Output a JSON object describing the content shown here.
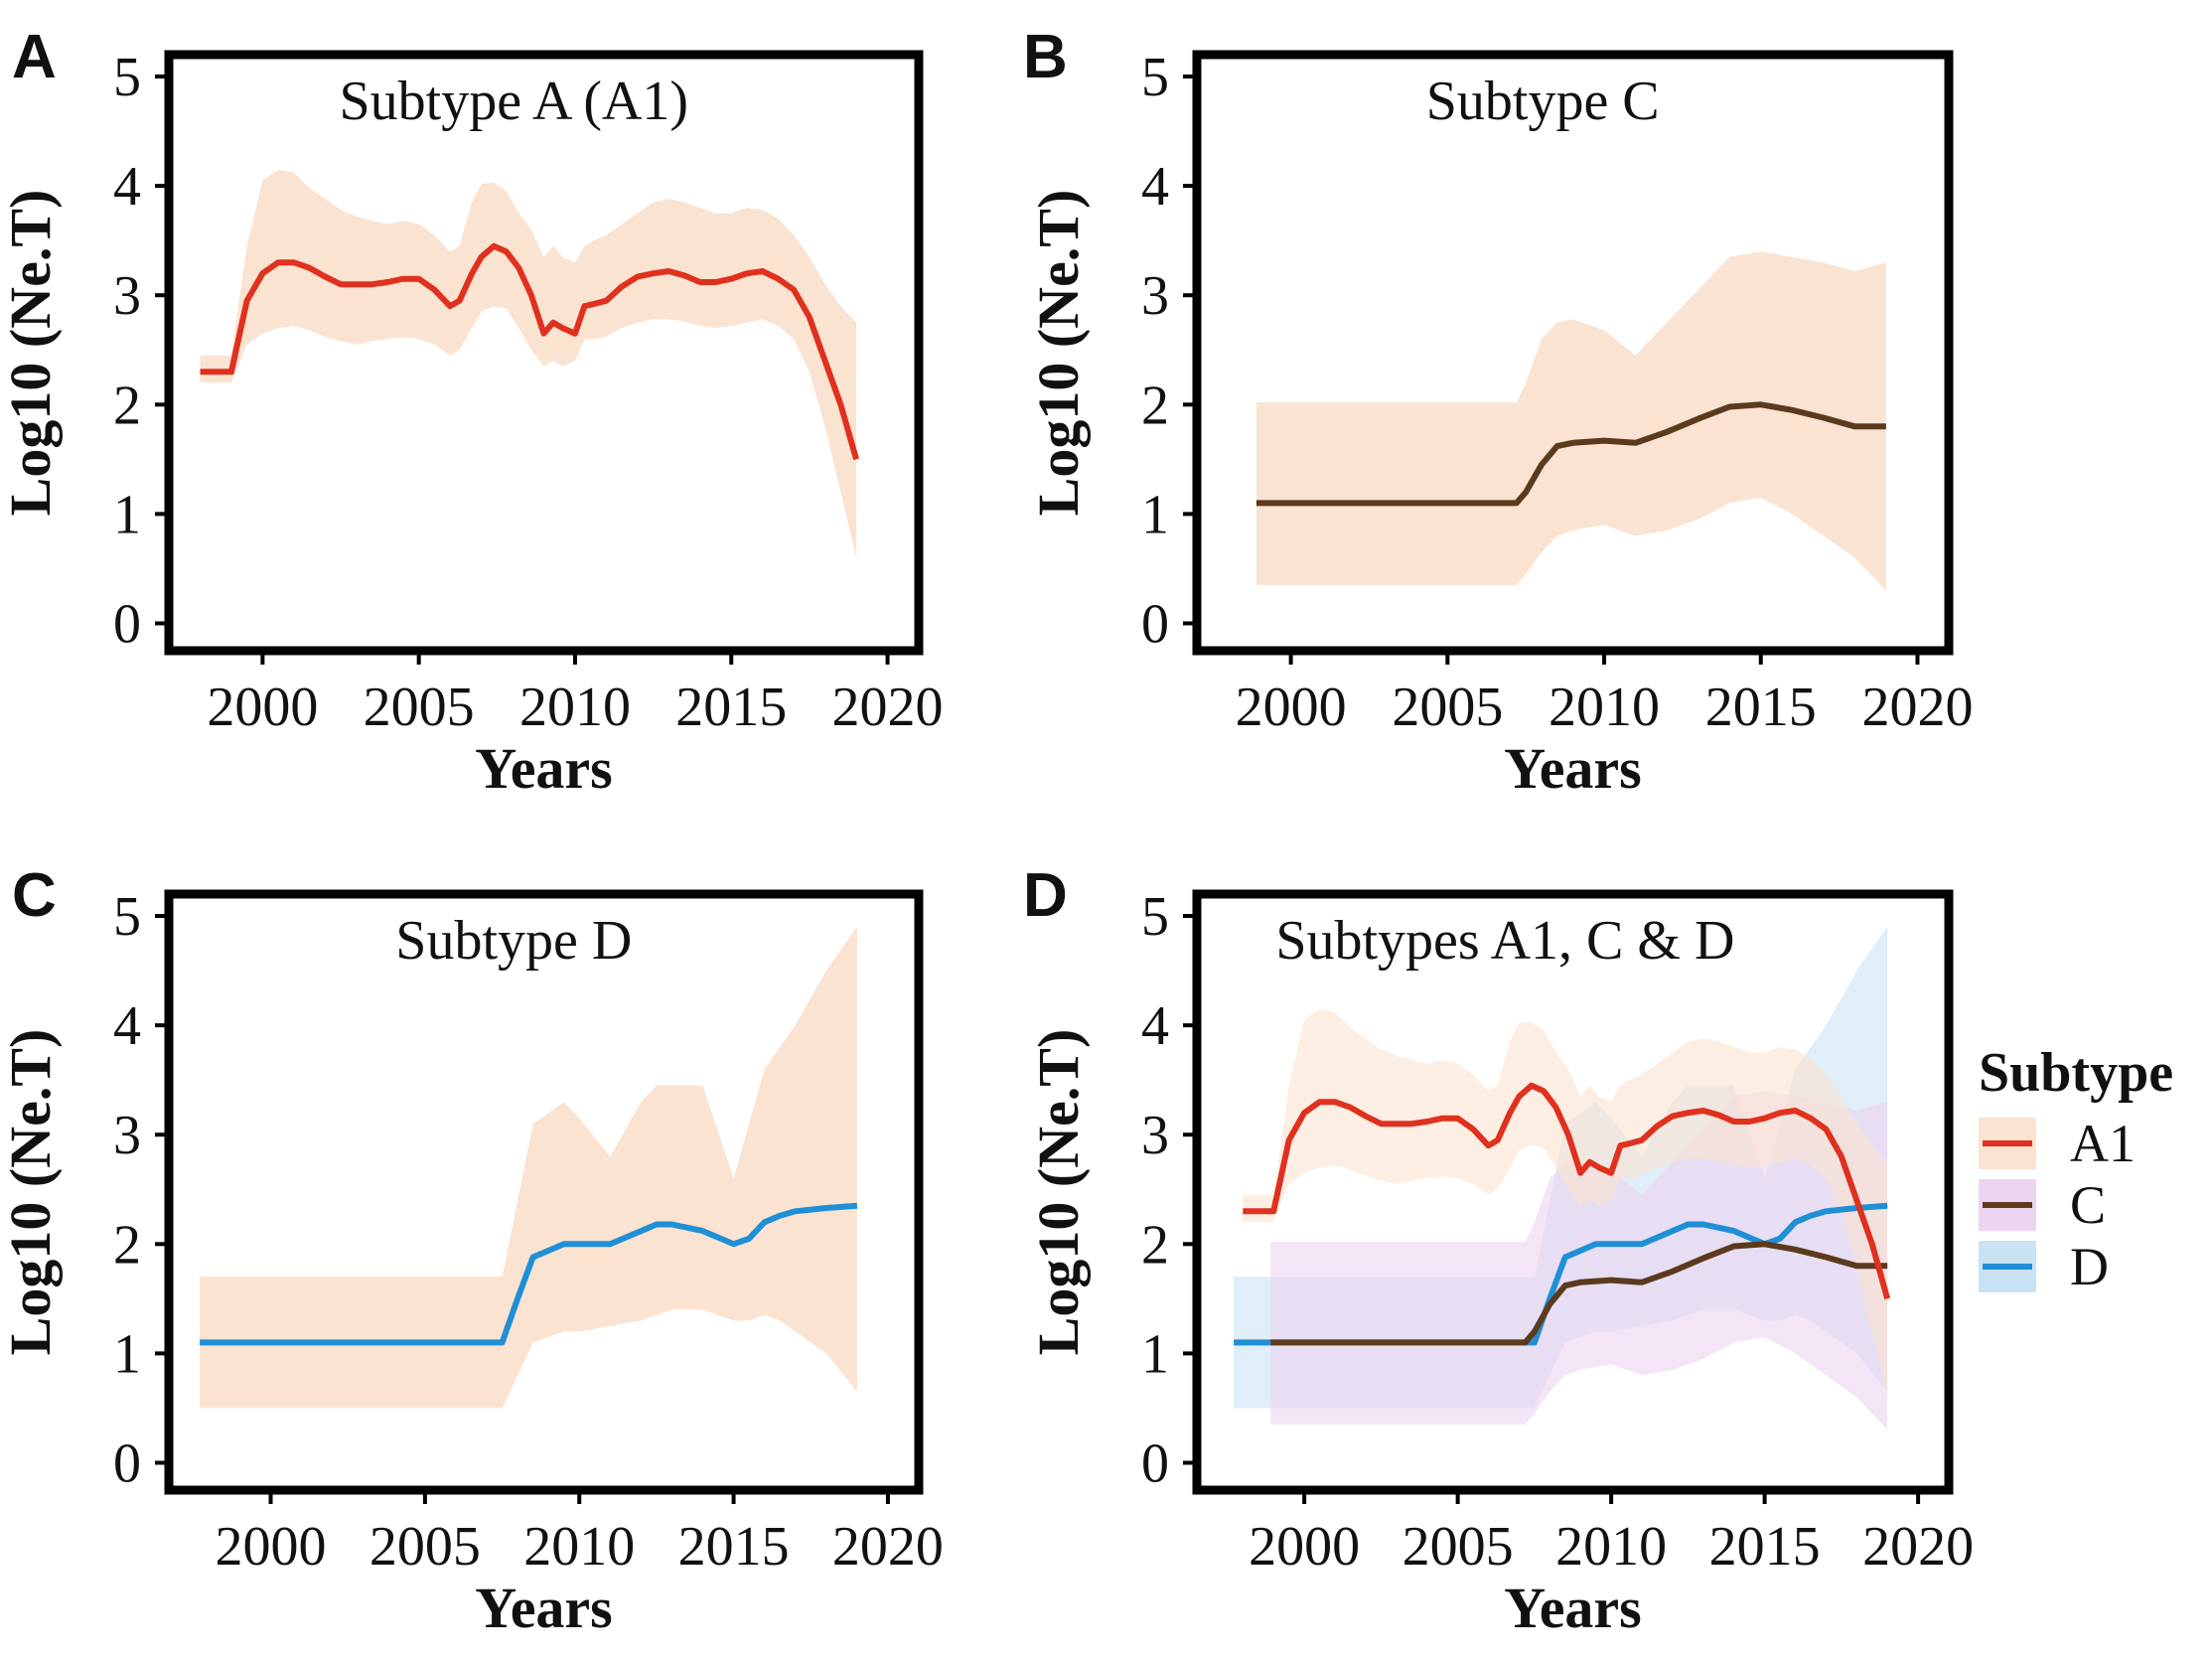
{
  "chart_data": [
    {
      "panel": "A",
      "type": "line",
      "title": "Subtype A (A1)",
      "xlabel": "Years",
      "ylabel": "Log10 (Ne.T)",
      "xlim": [
        1997,
        2021
      ],
      "ylim": [
        -0.25,
        5.2
      ],
      "xticks": [
        2000,
        2005,
        2010,
        2015,
        2020
      ],
      "yticks": [
        0,
        1,
        2,
        3,
        4,
        5
      ],
      "series": [
        {
          "name": "A1",
          "color": "#e0301e",
          "band_color": "#fbe3d1",
          "x": [
            1998.0,
            1999.0,
            1999.5,
            2000.0,
            2000.5,
            2001.0,
            2001.5,
            2002.0,
            2002.5,
            2003.0,
            2003.5,
            2004.0,
            2004.5,
            2005.0,
            2005.5,
            2006.0,
            2006.3,
            2006.7,
            2007.0,
            2007.4,
            2007.8,
            2008.2,
            2008.6,
            2009.0,
            2009.3,
            2009.6,
            2010.0,
            2010.3,
            2010.6,
            2011.0,
            2011.5,
            2012.0,
            2012.5,
            2013.0,
            2013.5,
            2014.0,
            2014.5,
            2015.0,
            2015.5,
            2016.0,
            2016.5,
            2017.0,
            2017.5,
            2018.0,
            2018.5,
            2019.0
          ],
          "y": [
            2.3,
            2.3,
            2.95,
            3.2,
            3.3,
            3.3,
            3.25,
            3.17,
            3.1,
            3.1,
            3.1,
            3.12,
            3.15,
            3.15,
            3.05,
            2.9,
            2.95,
            3.2,
            3.35,
            3.45,
            3.4,
            3.25,
            3.0,
            2.65,
            2.75,
            2.7,
            2.65,
            2.9,
            2.92,
            2.95,
            3.08,
            3.17,
            3.2,
            3.22,
            3.18,
            3.12,
            3.12,
            3.15,
            3.2,
            3.22,
            3.15,
            3.05,
            2.8,
            2.4,
            2.0,
            1.5
          ],
          "lower": [
            2.2,
            2.2,
            2.55,
            2.65,
            2.7,
            2.72,
            2.68,
            2.62,
            2.58,
            2.55,
            2.58,
            2.6,
            2.62,
            2.6,
            2.55,
            2.45,
            2.5,
            2.7,
            2.85,
            2.9,
            2.88,
            2.7,
            2.5,
            2.35,
            2.4,
            2.35,
            2.4,
            2.6,
            2.6,
            2.62,
            2.7,
            2.75,
            2.78,
            2.78,
            2.76,
            2.72,
            2.7,
            2.72,
            2.75,
            2.78,
            2.72,
            2.6,
            2.3,
            1.8,
            1.2,
            0.6
          ],
          "upper": [
            2.45,
            2.45,
            3.45,
            4.05,
            4.15,
            4.12,
            3.98,
            3.88,
            3.78,
            3.72,
            3.68,
            3.65,
            3.68,
            3.65,
            3.55,
            3.4,
            3.45,
            3.85,
            4.02,
            4.03,
            3.95,
            3.75,
            3.6,
            3.35,
            3.45,
            3.35,
            3.3,
            3.45,
            3.5,
            3.55,
            3.65,
            3.75,
            3.85,
            3.88,
            3.85,
            3.8,
            3.75,
            3.75,
            3.8,
            3.78,
            3.7,
            3.55,
            3.35,
            3.1,
            2.9,
            2.75
          ]
        }
      ]
    },
    {
      "panel": "B",
      "type": "line",
      "title": "Subtype C",
      "xlabel": "Years",
      "ylabel": "Log10 (Ne.T)",
      "xlim": [
        1997,
        2021
      ],
      "ylim": [
        -0.25,
        5.2
      ],
      "xticks": [
        2000,
        2005,
        2010,
        2015,
        2020
      ],
      "yticks": [
        0,
        1,
        2,
        3,
        4,
        5
      ],
      "series": [
        {
          "name": "C",
          "color": "#5b3a1e",
          "band_color": "#fbe3d1",
          "x": [
            1998.9,
            2007.2,
            2007.5,
            2008.0,
            2008.5,
            2009.0,
            2010.0,
            2011.0,
            2012.0,
            2013.0,
            2014.0,
            2015.0,
            2016.0,
            2017.0,
            2018.0,
            2019.0
          ],
          "y": [
            1.1,
            1.1,
            1.2,
            1.45,
            1.62,
            1.65,
            1.67,
            1.65,
            1.75,
            1.87,
            1.98,
            2.0,
            1.95,
            1.88,
            1.8,
            1.8
          ],
          "lower": [
            0.35,
            0.35,
            0.45,
            0.65,
            0.8,
            0.85,
            0.9,
            0.8,
            0.85,
            0.95,
            1.1,
            1.15,
            1.0,
            0.8,
            0.6,
            0.3
          ],
          "upper": [
            2.02,
            2.02,
            2.2,
            2.6,
            2.75,
            2.78,
            2.68,
            2.45,
            2.75,
            3.05,
            3.35,
            3.4,
            3.35,
            3.3,
            3.22,
            3.3
          ]
        }
      ]
    },
    {
      "panel": "C",
      "type": "line",
      "title": "Subtype D",
      "xlabel": "Years",
      "ylabel": "Log10 (Ne.T)",
      "xlim": [
        1996.7,
        2021
      ],
      "ylim": [
        -0.25,
        5.2
      ],
      "xticks": [
        2000,
        2005,
        2010,
        2015,
        2020
      ],
      "yticks": [
        0,
        1,
        2,
        3,
        4,
        5
      ],
      "series": [
        {
          "name": "D",
          "color": "#1f8fd6",
          "band_color": "#fbe3d1",
          "x": [
            1997.7,
            2007.5,
            2008.0,
            2008.5,
            2009.5,
            2010.0,
            2011.0,
            2012.0,
            2012.5,
            2013.0,
            2014.0,
            2015.0,
            2015.5,
            2016.0,
            2016.5,
            2017.0,
            2018.0,
            2019.0
          ],
          "y": [
            1.1,
            1.1,
            1.5,
            1.88,
            2.0,
            2.0,
            2.0,
            2.12,
            2.18,
            2.18,
            2.12,
            2.0,
            2.05,
            2.2,
            2.26,
            2.3,
            2.33,
            2.35
          ],
          "lower": [
            0.5,
            0.5,
            0.8,
            1.1,
            1.2,
            1.2,
            1.25,
            1.3,
            1.35,
            1.4,
            1.4,
            1.3,
            1.3,
            1.35,
            1.3,
            1.2,
            1.0,
            0.65
          ],
          "upper": [
            1.7,
            1.7,
            2.4,
            3.1,
            3.3,
            3.15,
            2.8,
            3.3,
            3.45,
            3.45,
            3.45,
            2.6,
            3.1,
            3.6,
            3.8,
            4.0,
            4.5,
            4.9
          ]
        }
      ]
    },
    {
      "panel": "D",
      "type": "line",
      "title": "Subtypes A1, C & D",
      "xlabel": "Years",
      "ylabel": "Log10 (Ne.T)",
      "xlim": [
        1996.5,
        2021
      ],
      "ylim": [
        -0.25,
        5.2
      ],
      "xticks": [
        2000,
        2005,
        2010,
        2015,
        2020
      ],
      "yticks": [
        0,
        1,
        2,
        3,
        4,
        5
      ],
      "legend": {
        "title": "Subtype",
        "position": "right",
        "entries": [
          "A1",
          "C",
          "D"
        ]
      },
      "series": [
        {
          "name": "D",
          "color": "#1f8fd6",
          "band_color": "#c9e3f4",
          "x": [
            1997.7,
            2007.5,
            2008.0,
            2008.5,
            2009.5,
            2010.0,
            2011.0,
            2012.0,
            2012.5,
            2013.0,
            2014.0,
            2015.0,
            2015.5,
            2016.0,
            2016.5,
            2017.0,
            2018.0,
            2019.0
          ],
          "y": [
            1.1,
            1.1,
            1.5,
            1.88,
            2.0,
            2.0,
            2.0,
            2.12,
            2.18,
            2.18,
            2.12,
            2.0,
            2.05,
            2.2,
            2.26,
            2.3,
            2.33,
            2.35
          ],
          "lower": [
            0.5,
            0.5,
            0.8,
            1.1,
            1.2,
            1.2,
            1.25,
            1.3,
            1.35,
            1.4,
            1.4,
            1.3,
            1.3,
            1.35,
            1.3,
            1.2,
            1.0,
            0.65
          ],
          "upper": [
            1.7,
            1.7,
            2.4,
            3.1,
            3.3,
            3.15,
            2.8,
            3.3,
            3.45,
            3.45,
            3.45,
            2.6,
            3.1,
            3.6,
            3.8,
            4.0,
            4.5,
            4.9
          ]
        },
        {
          "name": "C",
          "color": "#5b3a1e",
          "band_color": "#ecd3f0",
          "x": [
            1998.9,
            2007.2,
            2007.5,
            2008.0,
            2008.5,
            2009.0,
            2010.0,
            2011.0,
            2012.0,
            2013.0,
            2014.0,
            2015.0,
            2016.0,
            2017.0,
            2018.0,
            2019.0
          ],
          "y": [
            1.1,
            1.1,
            1.2,
            1.45,
            1.62,
            1.65,
            1.67,
            1.65,
            1.75,
            1.87,
            1.98,
            2.0,
            1.95,
            1.88,
            1.8,
            1.8
          ],
          "lower": [
            0.35,
            0.35,
            0.45,
            0.65,
            0.8,
            0.85,
            0.9,
            0.8,
            0.85,
            0.95,
            1.1,
            1.15,
            1.0,
            0.8,
            0.6,
            0.3
          ],
          "upper": [
            2.02,
            2.02,
            2.2,
            2.6,
            2.75,
            2.78,
            2.68,
            2.45,
            2.75,
            3.05,
            3.35,
            3.4,
            3.35,
            3.3,
            3.22,
            3.3
          ]
        },
        {
          "name": "A1",
          "color": "#e0301e",
          "band_color": "#fbe3d1",
          "x": [
            1998.0,
            1999.0,
            1999.5,
            2000.0,
            2000.5,
            2001.0,
            2001.5,
            2002.0,
            2002.5,
            2003.0,
            2003.5,
            2004.0,
            2004.5,
            2005.0,
            2005.5,
            2006.0,
            2006.3,
            2006.7,
            2007.0,
            2007.4,
            2007.8,
            2008.2,
            2008.6,
            2009.0,
            2009.3,
            2009.6,
            2010.0,
            2010.3,
            2010.6,
            2011.0,
            2011.5,
            2012.0,
            2012.5,
            2013.0,
            2013.5,
            2014.0,
            2014.5,
            2015.0,
            2015.5,
            2016.0,
            2016.5,
            2017.0,
            2017.5,
            2018.0,
            2018.5,
            2019.0
          ],
          "y": [
            2.3,
            2.3,
            2.95,
            3.2,
            3.3,
            3.3,
            3.25,
            3.17,
            3.1,
            3.1,
            3.1,
            3.12,
            3.15,
            3.15,
            3.05,
            2.9,
            2.95,
            3.2,
            3.35,
            3.45,
            3.4,
            3.25,
            3.0,
            2.65,
            2.75,
            2.7,
            2.65,
            2.9,
            2.92,
            2.95,
            3.08,
            3.17,
            3.2,
            3.22,
            3.18,
            3.12,
            3.12,
            3.15,
            3.2,
            3.22,
            3.15,
            3.05,
            2.8,
            2.4,
            2.0,
            1.5
          ],
          "lower": [
            2.2,
            2.2,
            2.55,
            2.65,
            2.7,
            2.72,
            2.68,
            2.62,
            2.58,
            2.55,
            2.58,
            2.6,
            2.62,
            2.6,
            2.55,
            2.45,
            2.5,
            2.7,
            2.85,
            2.9,
            2.88,
            2.7,
            2.5,
            2.35,
            2.4,
            2.35,
            2.4,
            2.6,
            2.6,
            2.62,
            2.7,
            2.75,
            2.78,
            2.78,
            2.76,
            2.72,
            2.7,
            2.72,
            2.75,
            2.78,
            2.72,
            2.6,
            2.3,
            1.8,
            1.2,
            0.6
          ],
          "upper": [
            2.45,
            2.45,
            3.45,
            4.05,
            4.15,
            4.12,
            3.98,
            3.88,
            3.78,
            3.72,
            3.68,
            3.65,
            3.68,
            3.65,
            3.55,
            3.4,
            3.45,
            3.85,
            4.02,
            4.03,
            3.95,
            3.75,
            3.6,
            3.35,
            3.45,
            3.35,
            3.3,
            3.45,
            3.5,
            3.55,
            3.65,
            3.75,
            3.85,
            3.88,
            3.85,
            3.8,
            3.75,
            3.75,
            3.8,
            3.78,
            3.7,
            3.55,
            3.35,
            3.1,
            2.9,
            2.75
          ]
        }
      ]
    }
  ]
}
